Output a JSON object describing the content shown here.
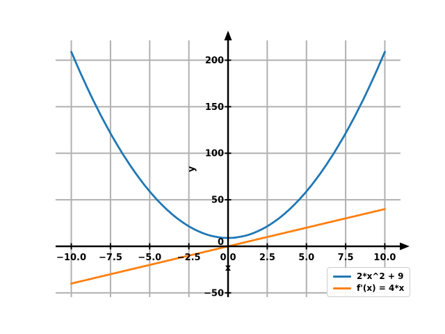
{
  "figure": {
    "background": "#ffffff"
  },
  "chart_data": {
    "type": "line",
    "title": "",
    "xlabel": "x",
    "ylabel": "y",
    "xlim": [
      -11,
      11
    ],
    "ylim": [
      -54.6,
      221.3
    ],
    "x_ticks": [
      -10,
      -7.5,
      -5,
      -2.5,
      0,
      2.5,
      5,
      7.5,
      10
    ],
    "x_tick_labels": [
      "−10.0",
      "−7.5",
      "−5.0",
      "−2.5",
      "0.0",
      "2.5",
      "5.0",
      "7.5",
      "10.0"
    ],
    "y_ticks": [
      -50,
      0,
      50,
      100,
      150,
      200
    ],
    "y_tick_labels": [
      "−50",
      "0",
      "50",
      "100",
      "150",
      "200"
    ],
    "grid": true,
    "grid_color": "#b0b0b0",
    "axis_color": "#000000",
    "legend_position": "lower right",
    "series": [
      {
        "name": "2*x^2 + 9",
        "color": "#1f77b4",
        "poly_coeffs": [
          9,
          0,
          2
        ],
        "x_range": [
          -10,
          10
        ],
        "sample_points": [
          [
            -10,
            209
          ],
          [
            -7.5,
            121.5
          ],
          [
            -5,
            59
          ],
          [
            -2.5,
            21.5
          ],
          [
            0,
            9
          ],
          [
            2.5,
            21.5
          ],
          [
            5,
            59
          ],
          [
            7.5,
            121.5
          ],
          [
            10,
            209
          ]
        ]
      },
      {
        "name": "f'(x) = 4*x",
        "color": "#ff7f0e",
        "poly_coeffs": [
          0,
          4
        ],
        "x_range": [
          -10,
          10
        ],
        "sample_points": [
          [
            -10,
            -40
          ],
          [
            -5,
            -20
          ],
          [
            0,
            0
          ],
          [
            5,
            20
          ],
          [
            10,
            40
          ]
        ]
      }
    ]
  }
}
